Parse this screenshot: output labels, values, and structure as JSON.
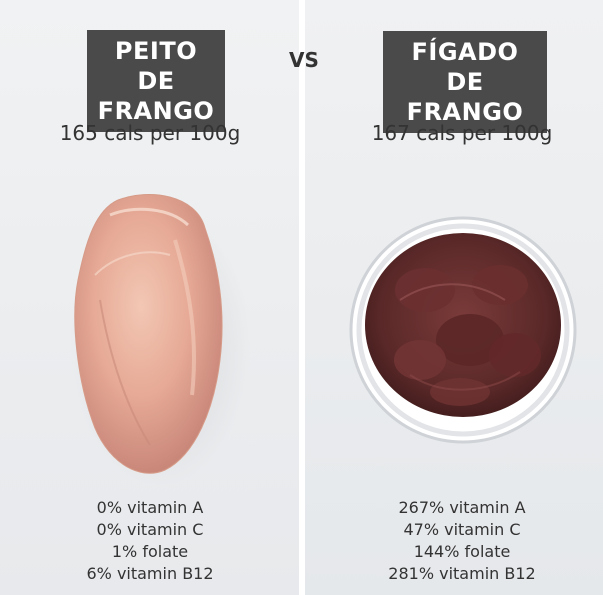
{
  "comparison": {
    "vs": "VS",
    "left": {
      "title_line1": "PEITO DE",
      "title_line2": "FRANGO",
      "calories": "165 cals per 100g",
      "facts": [
        "0% vitamin A",
        "0% vitamin C",
        "1% folate",
        "6% vitamin B12"
      ]
    },
    "right": {
      "title_line1": "FÍGADO DE",
      "title_line2": "FRANGO",
      "calories": "167 cals per 100g",
      "facts": [
        "267% vitamin A",
        "47% vitamin C",
        "144% folate",
        "281% vitamin B12"
      ]
    }
  }
}
